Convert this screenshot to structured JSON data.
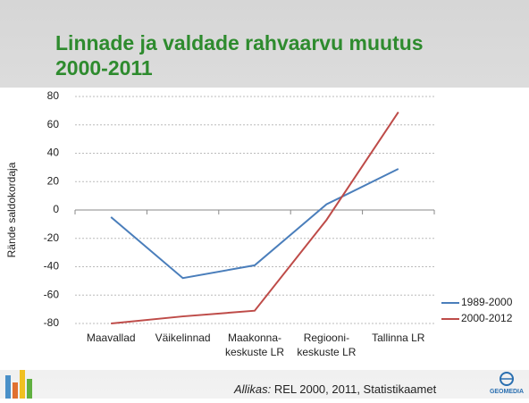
{
  "chart_data": {
    "type": "line",
    "title": [
      "Linnade ja valdade rahvaarvu muutus",
      "2000-2011"
    ],
    "y_label": "Rände saldokordaja",
    "categories": [
      [
        "Maavallad"
      ],
      [
        "Väikelinnad"
      ],
      [
        "Maakonna-",
        "keskuste LR"
      ],
      [
        "Regiooni-",
        "keskuste LR"
      ],
      [
        "Tallinna LR"
      ]
    ],
    "series": [
      {
        "name": "1989-2000",
        "color": "#4a7ebb",
        "values": [
          -5,
          -48,
          -39,
          4,
          29
        ]
      },
      {
        "name": "2000-2012",
        "color": "#be4b48",
        "values": [
          -80,
          -75,
          -71,
          -7,
          69
        ]
      }
    ],
    "ylim": [
      -80,
      80
    ],
    "yticks": [
      -80,
      -60,
      -40,
      -20,
      0,
      20,
      40,
      60,
      80
    ],
    "grid": true,
    "legend": "right",
    "source": {
      "label": "Allikas:",
      "text": "REL 2000, 2011, Statistikaamet"
    },
    "logo": "GEOMEDIA"
  }
}
